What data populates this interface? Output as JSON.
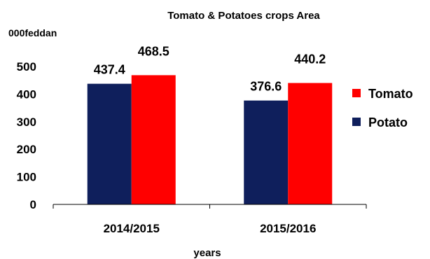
{
  "chart_data": {
    "type": "bar",
    "title": "Tomato & Potatoes crops Area",
    "ylabel": "000feddan",
    "xlabel": "years",
    "categories": [
      "2014/2015",
      "2015/2016"
    ],
    "series": [
      {
        "name": "Potato",
        "values": [
          437.4,
          376.6
        ],
        "labels": [
          "437.4",
          "376.6"
        ],
        "color": "#0f1f5c"
      },
      {
        "name": "Tomato",
        "values": [
          468.5,
          440.2
        ],
        "labels": [
          "468.5",
          "440.2"
        ],
        "color": "#ff0000"
      }
    ],
    "ylim": [
      0,
      500
    ],
    "yticks": [
      "0",
      "100",
      "200",
      "300",
      "400",
      "500"
    ],
    "grid": false,
    "legend": {
      "position": "right",
      "order": [
        "Tomato",
        "Potato"
      ]
    }
  }
}
